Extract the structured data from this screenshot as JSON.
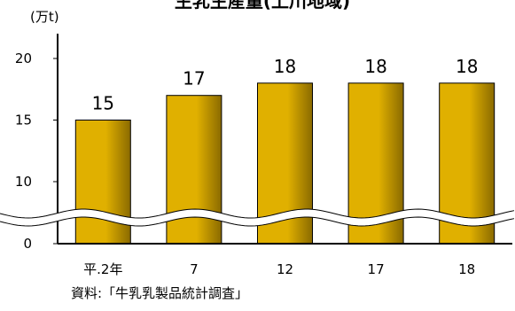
{
  "chart_data": {
    "type": "bar",
    "title": "生乳生産量(上川地域)",
    "unit_label": "(万t)",
    "categories": [
      "平.2年",
      "7",
      "12",
      "17",
      "18"
    ],
    "values": [
      15,
      17,
      18,
      18,
      18
    ],
    "value_labels": [
      "15",
      "17",
      "18",
      "18",
      "18"
    ],
    "y_ticks": [
      "0",
      "10",
      "15",
      "20"
    ],
    "ylim": [
      0,
      22
    ],
    "axis_break": true,
    "grid": false,
    "bar_color": "#e0b000",
    "bar_dark_color": "#8a6a00"
  },
  "source_note": "資料:「牛乳乳製品統計調査」"
}
